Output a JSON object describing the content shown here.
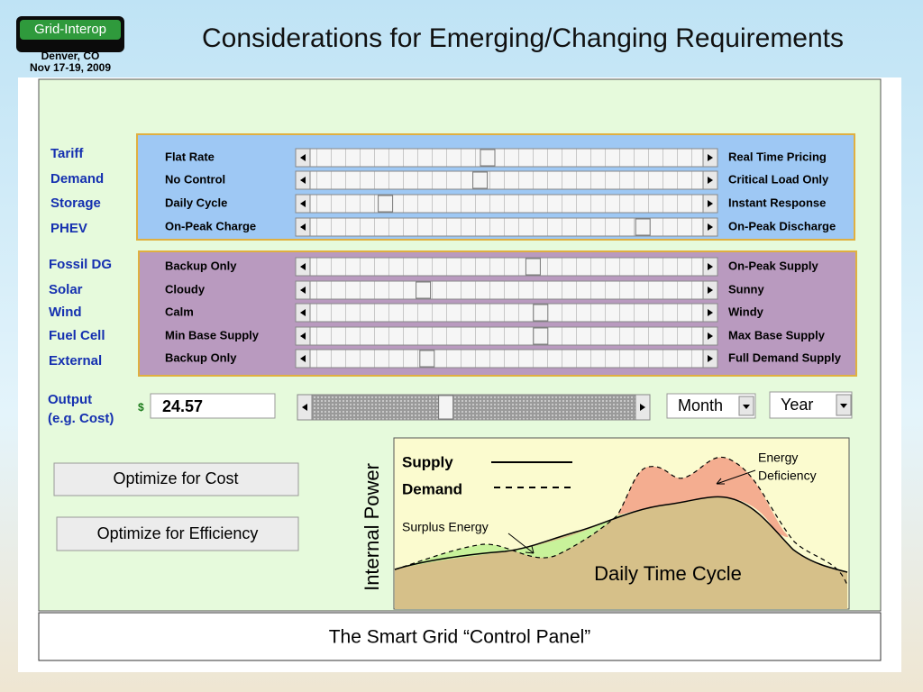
{
  "header": {
    "logo": "Grid-Interop",
    "location": "Denver, CO",
    "dates": "Nov 17-19, 2009",
    "title": "Considerations for Emerging/Changing Requirements"
  },
  "groups": [
    {
      "rows": [
        {
          "category": "Tariff",
          "left": "Flat Rate",
          "right": "Real Time Pricing",
          "setting": 45
        },
        {
          "category": "Demand",
          "left": "No Control",
          "right": "Critical Load Only",
          "setting": 43
        },
        {
          "category": "Storage",
          "left": "Daily Cycle",
          "right": "Instant Response",
          "setting": 18
        },
        {
          "category": "PHEV",
          "left": "On-Peak Charge",
          "right": "On-Peak Discharge",
          "setting": 86
        }
      ]
    },
    {
      "rows": [
        {
          "category": "Fossil DG",
          "left": "Backup Only",
          "right": "On-Peak Supply",
          "setting": 57
        },
        {
          "category": "Solar",
          "left": "Cloudy",
          "right": "Sunny",
          "setting": 28
        },
        {
          "category": "Wind",
          "left": "Calm",
          "right": "Windy",
          "setting": 59
        },
        {
          "category": "Fuel Cell",
          "left": "Min Base Supply",
          "right": "Max Base Supply",
          "setting": 59
        },
        {
          "category": "External",
          "left": "Backup Only",
          "right": "Full Demand Supply",
          "setting": 29
        }
      ]
    }
  ],
  "output": {
    "label": [
      "Output",
      "(e.g. Cost)"
    ],
    "currency": "$",
    "value": "24.57",
    "setting": 41,
    "period": "Month",
    "range": "Year"
  },
  "buttons": [
    "Optimize for Cost",
    "Optimize for Efficiency"
  ],
  "diagram": {
    "y_label": "Internal Power",
    "legend": [
      "Supply",
      "Demand"
    ],
    "deficiency": [
      "Energy",
      "Deficiency"
    ],
    "surplus": "Surplus Energy",
    "caption": "Daily Time Cycle"
  },
  "footer": "The Smart Grid “Control Panel”"
}
